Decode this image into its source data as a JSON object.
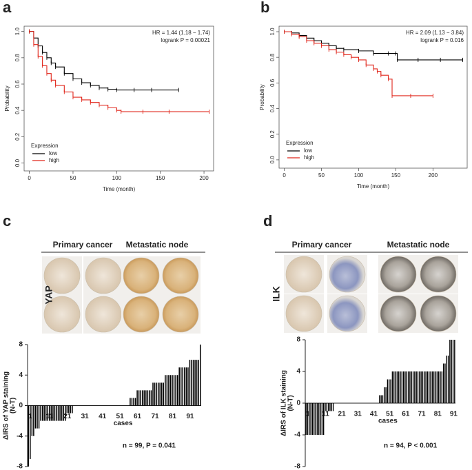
{
  "chart_data": [
    {
      "panel": "a",
      "type": "line",
      "step": true,
      "xlabel": "Time (month)",
      "ylabel": "Probability",
      "annotations": [
        "HR = 1.44 (1.18 − 1.74)",
        "logrank P = 0.00021"
      ],
      "legend_title": "Expression",
      "legend": "lower left",
      "xlim": [
        -6,
        211
      ],
      "ylim": [
        -0.06,
        1.04
      ],
      "xticks": [
        0,
        50,
        100,
        150,
        200
      ],
      "yticks": [
        {
          "value": 0,
          "label": "0.0"
        },
        0.2,
        0.4,
        0.6,
        0.8,
        {
          "value": 1,
          "label": "1.0"
        }
      ],
      "series": [
        {
          "name": "low",
          "color": "#000000",
          "x": [
            0,
            5,
            10,
            15,
            20,
            25,
            30,
            40,
            50,
            60,
            70,
            80,
            90,
            100,
            120,
            140,
            171
          ],
          "values": [
            1.0,
            0.95,
            0.89,
            0.84,
            0.8,
            0.76,
            0.73,
            0.68,
            0.64,
            0.61,
            0.59,
            0.57,
            0.56,
            0.555,
            0.555,
            0.555,
            0.555
          ]
        },
        {
          "name": "high",
          "color": "#e0261b",
          "x": [
            0,
            5,
            10,
            15,
            20,
            25,
            30,
            40,
            50,
            60,
            70,
            80,
            90,
            100,
            105,
            130,
            160,
            206
          ],
          "values": [
            1.0,
            0.9,
            0.81,
            0.74,
            0.68,
            0.63,
            0.59,
            0.54,
            0.5,
            0.48,
            0.46,
            0.44,
            0.42,
            0.4,
            0.39,
            0.39,
            0.39,
            0.39
          ]
        }
      ]
    },
    {
      "panel": "b",
      "type": "line",
      "step": true,
      "xlabel": "Time (month)",
      "ylabel": "Probability",
      "annotations": [
        "HR = 2.09 (1.13 − 3.84)",
        "logrank P = 0.016"
      ],
      "legend_title": "Expression",
      "legend": "lower left",
      "xlim": [
        -7,
        246
      ],
      "ylim": [
        -0.065,
        1.043
      ],
      "xticks": [
        0,
        50,
        100,
        150,
        200
      ],
      "yticks": [
        {
          "value": 0,
          "label": "0.0"
        },
        0.2,
        0.4,
        0.6,
        0.8,
        {
          "value": 1,
          "label": "1.0"
        }
      ],
      "series": [
        {
          "name": "low",
          "color": "#000000",
          "x": [
            0,
            10,
            20,
            30,
            40,
            50,
            60,
            70,
            80,
            100,
            120,
            140,
            150,
            152,
            180,
            210,
            240
          ],
          "values": [
            1.0,
            0.99,
            0.97,
            0.95,
            0.93,
            0.91,
            0.89,
            0.87,
            0.86,
            0.85,
            0.83,
            0.83,
            0.83,
            0.78,
            0.78,
            0.78,
            0.78
          ]
        },
        {
          "name": "high",
          "color": "#e0261b",
          "x": [
            0,
            10,
            20,
            30,
            40,
            50,
            60,
            70,
            80,
            90,
            100,
            110,
            120,
            125,
            130,
            140,
            145,
            170,
            200
          ],
          "values": [
            1.0,
            0.98,
            0.96,
            0.93,
            0.91,
            0.89,
            0.86,
            0.84,
            0.82,
            0.8,
            0.78,
            0.74,
            0.71,
            0.69,
            0.66,
            0.63,
            0.5,
            0.5,
            0.5
          ]
        }
      ]
    },
    {
      "panel": "c",
      "type": "bar",
      "color": "#000000",
      "images": {
        "headers": [
          "Primary cancer",
          "Metastatic node"
        ],
        "stain": "YAP"
      },
      "ylabel": [
        "ΔIRS of YAP staining",
        "(N-T)"
      ],
      "xlabel": "cases",
      "annotation": "n = 99, P = 0.041",
      "ylim": [
        -8,
        8
      ],
      "yticks": [
        -8,
        -4,
        0,
        4,
        8
      ],
      "categories": [
        "1",
        null,
        null,
        null,
        null,
        null,
        null,
        null,
        null,
        null,
        "11",
        null,
        null,
        null,
        null,
        null,
        null,
        null,
        null,
        null,
        "21",
        null,
        null,
        null,
        null,
        null,
        null,
        null,
        null,
        null,
        "31",
        null,
        null,
        null,
        null,
        null,
        null,
        null,
        null,
        null,
        "41",
        null,
        null,
        null,
        null,
        null,
        null,
        null,
        null,
        null,
        "51",
        null,
        null,
        null,
        null,
        null,
        null,
        null,
        null,
        null,
        "61",
        null,
        null,
        null,
        null,
        null,
        null,
        null,
        null,
        null,
        "71",
        null,
        null,
        null,
        null,
        null,
        null,
        null,
        null,
        null,
        "81",
        null,
        null,
        null,
        null,
        null,
        null,
        null,
        null,
        null,
        "91",
        null,
        null,
        null,
        null,
        null,
        null,
        null,
        null
      ],
      "values": [
        -8,
        -7,
        -4,
        -4,
        -3,
        -3,
        -3,
        -2,
        -2,
        -2,
        -2,
        -2,
        -2,
        -2,
        -2,
        -2,
        -2,
        -2,
        -2,
        -2,
        -2,
        -2,
        -1,
        -1,
        -1,
        -1,
        0,
        0,
        0,
        0,
        0,
        0,
        0,
        0,
        0,
        0,
        0,
        0,
        0,
        0,
        0,
        0,
        0,
        0,
        0,
        0,
        0,
        0,
        0,
        0,
        0,
        0,
        0,
        0,
        0,
        0,
        0,
        0,
        1,
        1,
        1,
        1,
        2,
        2,
        2,
        2,
        2,
        2,
        2,
        2,
        2,
        3,
        3,
        3,
        3,
        3,
        3,
        3,
        4,
        4,
        4,
        4,
        4,
        4,
        4,
        4,
        5,
        5,
        5,
        5,
        5,
        5,
        6,
        6,
        6,
        6,
        6,
        6,
        8
      ]
    },
    {
      "panel": "d",
      "type": "bar",
      "color": "#000000",
      "images": {
        "headers": [
          "Primary cancer",
          "Metastatic node"
        ],
        "stain": "ILK"
      },
      "ylabel": [
        "ΔIRS of ILK staining",
        "(N-T)"
      ],
      "xlabel": "cases",
      "annotation": "n = 94, P < 0.001",
      "ylim": [
        -8,
        8
      ],
      "yticks": [
        -8,
        -4,
        0,
        4,
        8
      ],
      "categories": [
        "1",
        null,
        null,
        null,
        null,
        null,
        null,
        null,
        null,
        null,
        "11",
        null,
        null,
        null,
        null,
        null,
        null,
        null,
        null,
        null,
        "21",
        null,
        null,
        null,
        null,
        null,
        null,
        null,
        null,
        null,
        "31",
        null,
        null,
        null,
        null,
        null,
        null,
        null,
        null,
        null,
        "41",
        null,
        null,
        null,
        null,
        null,
        null,
        null,
        null,
        null,
        "51",
        null,
        null,
        null,
        null,
        null,
        null,
        null,
        null,
        null,
        "61",
        null,
        null,
        null,
        null,
        null,
        null,
        null,
        null,
        null,
        "71",
        null,
        null,
        null,
        null,
        null,
        null,
        null,
        null,
        null,
        "81",
        null,
        null,
        null,
        null,
        null,
        null,
        null,
        null,
        null,
        "91",
        null,
        null,
        null
      ],
      "values": [
        -4,
        -4,
        -4,
        -4,
        -4,
        -4,
        -4,
        -4,
        -4,
        -4,
        -4,
        -4,
        -1,
        -1,
        -1,
        -1,
        -1,
        -1,
        0,
        0,
        0,
        0,
        0,
        0,
        0,
        0,
        0,
        0,
        0,
        0,
        0,
        0,
        0,
        0,
        0,
        0,
        0,
        0,
        0,
        0,
        0,
        0,
        0,
        0,
        0,
        0,
        1,
        1,
        1,
        2,
        2,
        3,
        3,
        3,
        4,
        4,
        4,
        4,
        4,
        4,
        4,
        4,
        4,
        4,
        4,
        4,
        4,
        4,
        4,
        4,
        4,
        4,
        4,
        4,
        4,
        4,
        4,
        4,
        4,
        4,
        4,
        4,
        4,
        4,
        4,
        4,
        5,
        5,
        6,
        6,
        8,
        8,
        8,
        8
      ]
    }
  ]
}
